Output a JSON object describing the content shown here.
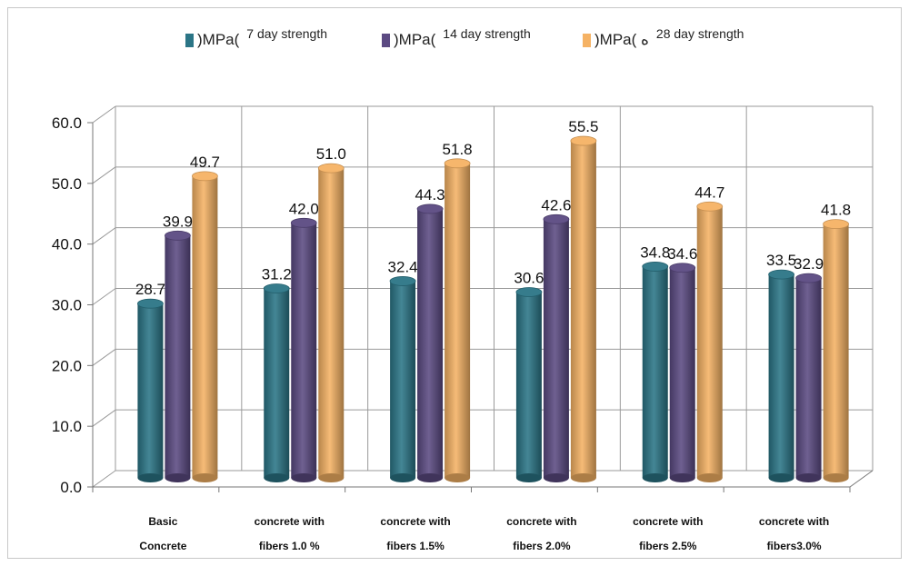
{
  "chart_data": {
    "type": "bar",
    "categories": [
      [
        "Basic",
        "Concrete"
      ],
      [
        "concrete with",
        "fibers 1.0 %"
      ],
      [
        "concrete with",
        "fibers 1.5%"
      ],
      [
        "concrete with",
        "fibers 2.0%"
      ],
      [
        "concrete with",
        "fibers 2.5%"
      ],
      [
        "concrete with",
        "fibers3.0%"
      ]
    ],
    "series": [
      {
        "name": "7 day strength",
        "prefix": ")MPa(",
        "color": "#2b7586",
        "values": [
          28.7,
          31.2,
          32.4,
          30.6,
          34.8,
          33.5
        ]
      },
      {
        "name": "14 day strength",
        "prefix": ")MPa(",
        "color": "#5b4a82",
        "values": [
          39.9,
          42.0,
          44.3,
          42.6,
          34.6,
          32.9
        ]
      },
      {
        "name": "28 day strength",
        "prefix": ")MPa( ه",
        "color": "#f5b264",
        "values": [
          49.7,
          51.0,
          51.8,
          55.5,
          44.7,
          41.8
        ]
      }
    ],
    "yticks": [
      "0.0",
      "10.0",
      "20.0",
      "30.0",
      "40.0",
      "50.0",
      "60.0"
    ],
    "ylim": [
      0,
      60
    ],
    "grid": true,
    "legend_position": "top"
  }
}
